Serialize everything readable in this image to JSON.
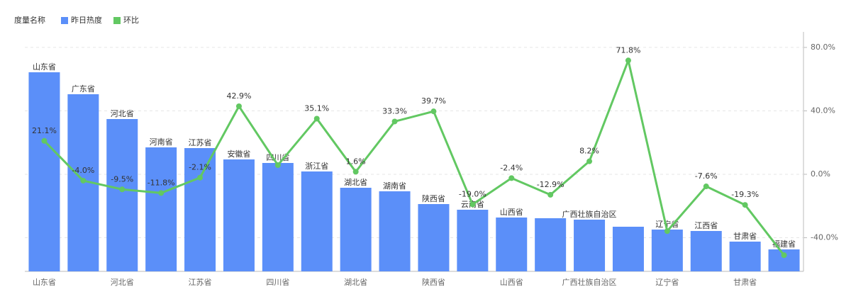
{
  "chart_data": {
    "type": "bar-line",
    "legend_title": "度量名称",
    "categories": [
      "山东省",
      "广东省",
      "河北省",
      "河南省",
      "江苏省",
      "安徽省",
      "四川省",
      "浙江省",
      "湖北省",
      "湖南省",
      "陕西省",
      "云南省",
      "山西省",
      null,
      "广西壮族自治区",
      null,
      "辽宁省",
      "江西省",
      "甘肃省",
      "福建省"
    ],
    "x_tick_interval": 2,
    "series": [
      {
        "name": "昨日热度",
        "type": "bar",
        "color": "#5b8ff9",
        "values": [
          281,
          250,
          215,
          175,
          174,
          158,
          153,
          141,
          118,
          113,
          95,
          87,
          76,
          75,
          73,
          63,
          59,
          57,
          42,
          31
        ]
      },
      {
        "name": "环比",
        "type": "line",
        "axis": "y2",
        "color": "#62c862",
        "values": [
          21.1,
          -4.0,
          -9.5,
          -11.8,
          -2.1,
          42.9,
          5.8,
          35.1,
          1.6,
          33.3,
          39.7,
          -19.0,
          -2.4,
          -12.9,
          8.2,
          71.8,
          -35.8,
          -7.6,
          -19.3,
          -51
        ],
        "value_labels": [
          "21.1%",
          "-4.0%",
          "-9.5%",
          "-11.8%",
          "-2.1%",
          "42.9%",
          null,
          "35.1%",
          "1.6%",
          "33.3%",
          "39.7%",
          "-19.0%",
          "-2.4%",
          "-12.9%",
          "8.2%",
          "71.8%",
          null,
          "-7.6%",
          "-19.3%",
          null
        ]
      }
    ],
    "ylim": [
      0,
      338
    ],
    "y2lim": [
      -61.2,
      89.8
    ],
    "y2ticks": [
      {
        "value": -40,
        "label": "-40.0%"
      },
      {
        "value": 0,
        "label": "0.0%"
      },
      {
        "value": 40,
        "label": "40.0%"
      },
      {
        "value": 80,
        "label": "80.0%"
      }
    ],
    "grid": true
  }
}
